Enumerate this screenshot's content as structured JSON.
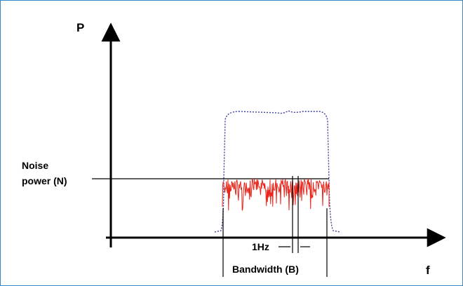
{
  "diagram": {
    "y_axis_label": "P",
    "x_axis_label": "f",
    "noise_label_line1": "Noise",
    "noise_label_line2": "power (N)",
    "resolution_label": "1Hz",
    "bandwidth_label": "Bandwidth (B)"
  },
  "colors": {
    "frame": "#3b86c4",
    "axes": "#000000",
    "noise_trace": "#e8261c",
    "envelope": "#3a3f9a"
  }
}
